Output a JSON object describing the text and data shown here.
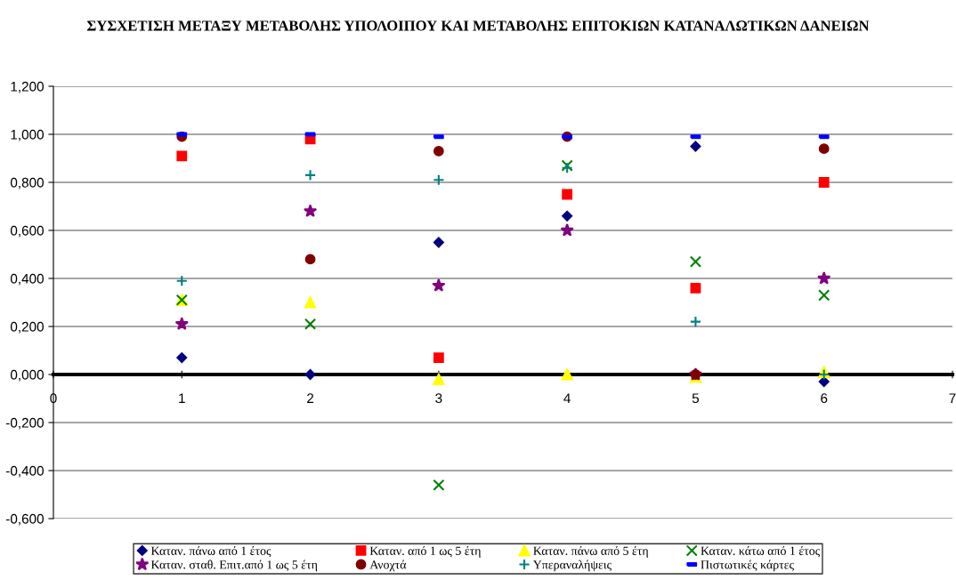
{
  "chart_data": {
    "type": "scatter",
    "title": "ΣΥΣΧΕΤΙΣΗ ΜΕΤΑΞΥ ΜΕΤΑΒΟΛΗΣ ΥΠΟΛΟΙΠΟΥ ΚΑΙ ΜΕΤΑΒΟΛΗΣ ΕΠΙΤΟΚΙΩΝ ΚΑΤΑΝΑΛΩΤΙΚΩΝ ΔΑΝΕΙΩΝ",
    "x": [
      1,
      2,
      3,
      4,
      5,
      6
    ],
    "xlim": [
      0,
      7
    ],
    "xticks": [
      0,
      1,
      2,
      3,
      4,
      5,
      6,
      7
    ],
    "ylim": [
      -0.6,
      1.2
    ],
    "yticks": [
      {
        "value": -0.6,
        "label": "-0,600"
      },
      {
        "value": -0.4,
        "label": "-0,400"
      },
      {
        "value": -0.2,
        "label": "-0,200"
      },
      {
        "value": 0,
        "label": "0,000"
      },
      {
        "value": 0.2,
        "label": "0,200"
      },
      {
        "value": 0.4,
        "label": "0,400"
      },
      {
        "value": 0.6,
        "label": "0,600"
      },
      {
        "value": 0.8,
        "label": "0,800"
      },
      {
        "value": 1.0,
        "label": "1,000"
      },
      {
        "value": 1.2,
        "label": "1,200"
      }
    ],
    "grid": "y",
    "legend": "bottom",
    "series": [
      {
        "name": "Καταν. πάνω από 1 έτος",
        "color": "#000080",
        "marker": "diamond",
        "values": [
          0.07,
          0.0,
          0.55,
          0.66,
          0.95,
          -0.03
        ]
      },
      {
        "name": "Καταν. από 1 ως 5 έτη",
        "color": "#ff0000",
        "marker": "square",
        "values": [
          0.91,
          0.98,
          0.07,
          0.75,
          0.36,
          0.8
        ]
      },
      {
        "name": "Καταν. πάνω από 5 έτη",
        "color": "#ffff00",
        "marker": "triangle",
        "values": [
          0.31,
          0.3,
          -0.02,
          0.0,
          -0.01,
          0.01
        ]
      },
      {
        "name": "Καταν. κάτω από 1 έτος",
        "color": "#008000",
        "marker": "cross",
        "values": [
          0.31,
          0.21,
          -0.46,
          0.87,
          0.47,
          0.33
        ]
      },
      {
        "name": "Καταν. σταθ. Επιτ.από 1 ως 5 έτη",
        "color": "#800080",
        "marker": "star",
        "values": [
          0.21,
          0.68,
          0.37,
          0.6,
          0.0,
          0.4
        ]
      },
      {
        "name": "Ανοχτά",
        "color": "#800000",
        "marker": "circle",
        "values": [
          0.99,
          0.48,
          0.93,
          0.99,
          0.0,
          0.94
        ]
      },
      {
        "name": "Υπεραναλήψεις",
        "color": "#008080",
        "marker": "plus",
        "values": [
          0.39,
          0.83,
          0.81,
          0.86,
          0.22,
          0.0
        ]
      },
      {
        "name": "Πιστωτικές κάρτες",
        "color": "#0000ff",
        "values": [
          1.0,
          1.0,
          0.99,
          0.99,
          0.99,
          0.99
        ]
      }
    ]
  }
}
